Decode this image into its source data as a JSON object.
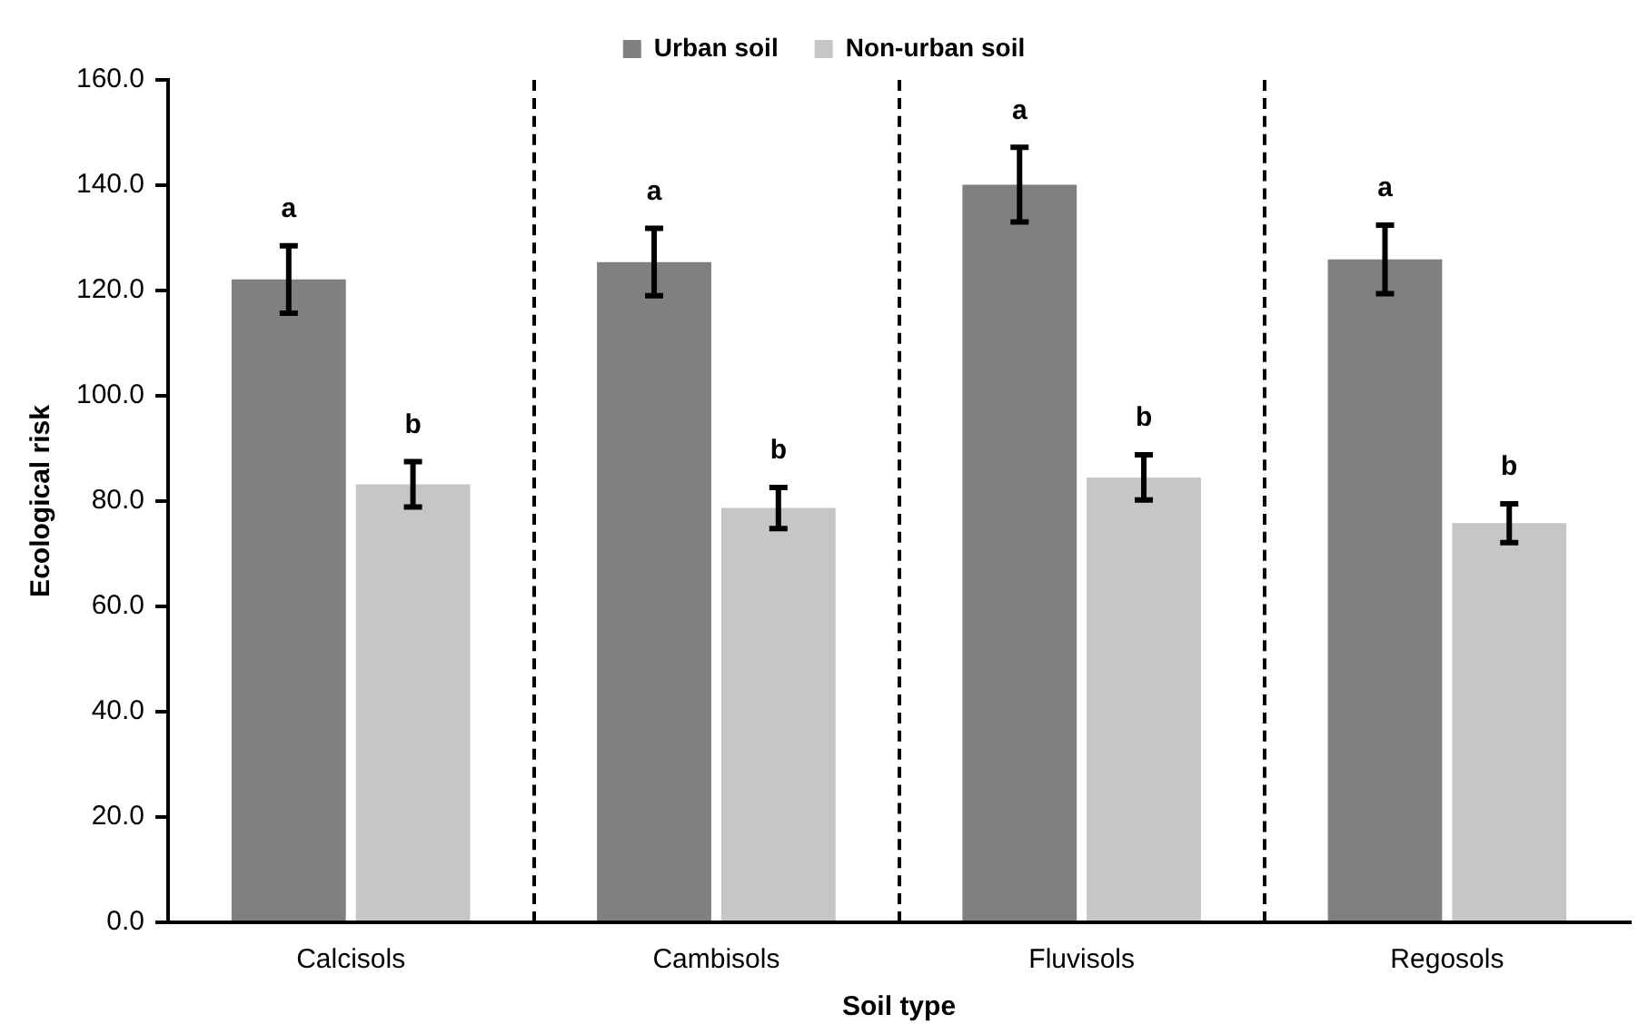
{
  "chart_data": {
    "type": "bar",
    "xlabel": "Soil type",
    "ylabel": "Ecological risk",
    "categories": [
      "Calcisols",
      "Cambisols",
      "Fluvisols",
      "Regosols"
    ],
    "series": [
      {
        "name": "Urban soil",
        "color": "#808080",
        "values": [
          122.1,
          125.4,
          140.1,
          125.9
        ],
        "errors": [
          6.4,
          6.4,
          7.1,
          6.5
        ]
      },
      {
        "name": "Non-urban soil",
        "color": "#c6c6c6",
        "values": [
          83.2,
          78.7,
          84.5,
          75.8
        ],
        "errors": [
          4.3,
          3.9,
          4.3,
          3.7
        ]
      }
    ],
    "ylim": [
      0,
      160
    ],
    "yticks": [
      {
        "value": 0,
        "label": "0.0"
      },
      {
        "value": 20,
        "label": "20.0"
      },
      {
        "value": 40,
        "label": "40.0"
      },
      {
        "value": 60,
        "label": "60.0"
      },
      {
        "value": 80,
        "label": "80.0"
      },
      {
        "value": 100,
        "label": "100.0"
      },
      {
        "value": 120,
        "label": "120.0"
      },
      {
        "value": 140,
        "label": "140.0"
      },
      {
        "value": 160,
        "label": "160.0"
      }
    ],
    "annotations": [
      "a",
      "b",
      "a",
      "b",
      "a",
      "b",
      "a",
      "b"
    ],
    "grid": false,
    "legend": "top"
  }
}
